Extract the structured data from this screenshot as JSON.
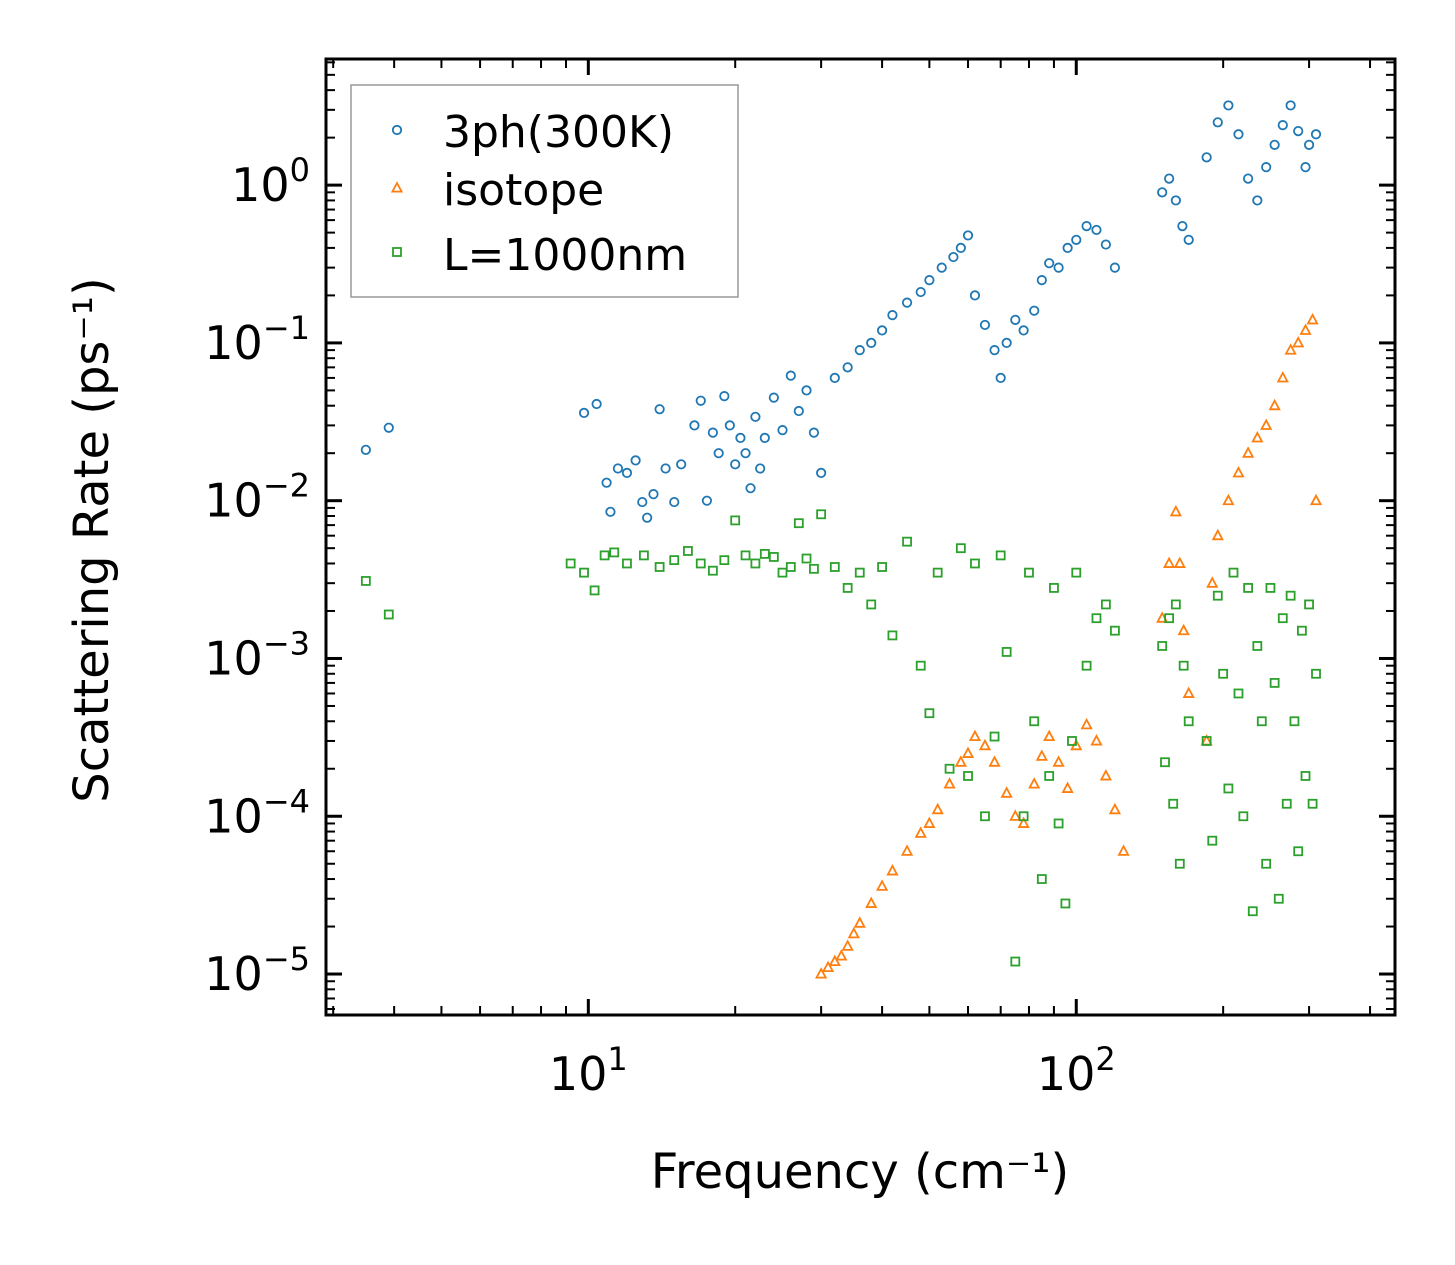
{
  "chart_data": {
    "type": "scatter",
    "xscale": "log",
    "yscale": "log",
    "xlim": [
      2.9,
      450
    ],
    "ylim": [
      5.5e-06,
      6.3
    ],
    "xlabel": "Frequency (cm⁻¹)",
    "ylabel": "Scattering Rate (ps⁻¹)",
    "x_ticks": [
      {
        "value": 10,
        "base": "10",
        "exp": "1"
      },
      {
        "value": 100,
        "base": "10",
        "exp": "2"
      }
    ],
    "y_ticks": [
      {
        "value": 1,
        "base": "10",
        "exp": "0"
      },
      {
        "value": 0.1,
        "base": "10",
        "exp": "−1"
      },
      {
        "value": 0.01,
        "base": "10",
        "exp": "−2"
      },
      {
        "value": 0.001,
        "base": "10",
        "exp": "−3"
      },
      {
        "value": 0.0001,
        "base": "10",
        "exp": "−4"
      },
      {
        "value": 1e-05,
        "base": "10",
        "exp": "−5"
      }
    ],
    "legend_position": "upper-left",
    "series": [
      {
        "name": "3ph(300K)",
        "marker": "circle",
        "color": "#1f77b4",
        "points": [
          [
            3.5,
            0.021
          ],
          [
            3.9,
            0.029
          ],
          [
            9.8,
            0.036
          ],
          [
            10.4,
            0.041
          ],
          [
            10.9,
            0.013
          ],
          [
            11.1,
            0.0085
          ],
          [
            11.5,
            0.016
          ],
          [
            12,
            0.015
          ],
          [
            12.5,
            0.018
          ],
          [
            12.9,
            0.0098
          ],
          [
            13.2,
            0.0078
          ],
          [
            13.6,
            0.011
          ],
          [
            14,
            0.038
          ],
          [
            14.4,
            0.016
          ],
          [
            15,
            0.0098
          ],
          [
            15.5,
            0.017
          ],
          [
            16.5,
            0.03
          ],
          [
            17,
            0.043
          ],
          [
            17.5,
            0.01
          ],
          [
            18,
            0.027
          ],
          [
            18.5,
            0.02
          ],
          [
            19,
            0.046
          ],
          [
            19.5,
            0.03
          ],
          [
            20,
            0.017
          ],
          [
            20.5,
            0.025
          ],
          [
            21,
            0.02
          ],
          [
            21.5,
            0.012
          ],
          [
            22,
            0.034
          ],
          [
            22.5,
            0.016
          ],
          [
            23,
            0.025
          ],
          [
            24,
            0.045
          ],
          [
            25,
            0.028
          ],
          [
            26,
            0.062
          ],
          [
            27,
            0.037
          ],
          [
            28,
            0.05
          ],
          [
            29,
            0.027
          ],
          [
            30,
            0.015
          ],
          [
            32,
            0.06
          ],
          [
            34,
            0.07
          ],
          [
            36,
            0.09
          ],
          [
            38,
            0.1
          ],
          [
            40,
            0.12
          ],
          [
            42,
            0.15
          ],
          [
            45,
            0.18
          ],
          [
            48,
            0.21
          ],
          [
            50,
            0.25
          ],
          [
            53,
            0.3
          ],
          [
            56,
            0.35
          ],
          [
            58,
            0.4
          ],
          [
            60,
            0.48
          ],
          [
            62,
            0.2
          ],
          [
            65,
            0.13
          ],
          [
            68,
            0.09
          ],
          [
            70,
            0.06
          ],
          [
            72,
            0.1
          ],
          [
            75,
            0.14
          ],
          [
            78,
            0.12
          ],
          [
            82,
            0.16
          ],
          [
            85,
            0.25
          ],
          [
            88,
            0.32
          ],
          [
            92,
            0.3
          ],
          [
            96,
            0.4
          ],
          [
            100,
            0.45
          ],
          [
            105,
            0.55
          ],
          [
            110,
            0.52
          ],
          [
            115,
            0.42
          ],
          [
            120,
            0.3
          ],
          [
            150,
            0.9
          ],
          [
            155,
            1.1
          ],
          [
            160,
            0.8
          ],
          [
            165,
            0.55
          ],
          [
            170,
            0.45
          ],
          [
            185,
            1.5
          ],
          [
            195,
            2.5
          ],
          [
            205,
            3.2
          ],
          [
            215,
            2.1
          ],
          [
            225,
            1.1
          ],
          [
            235,
            0.8
          ],
          [
            245,
            1.3
          ],
          [
            255,
            1.8
          ],
          [
            265,
            2.4
          ],
          [
            275,
            3.2
          ],
          [
            285,
            2.2
          ],
          [
            295,
            1.3
          ],
          [
            300,
            1.8
          ],
          [
            310,
            2.1
          ]
        ]
      },
      {
        "name": "isotope",
        "marker": "triangle",
        "color": "#ff7f0e",
        "points": [
          [
            30,
            1e-05
          ],
          [
            31,
            1.1e-05
          ],
          [
            32,
            1.2e-05
          ],
          [
            33,
            1.3e-05
          ],
          [
            34,
            1.5e-05
          ],
          [
            35,
            1.8e-05
          ],
          [
            36,
            2.1e-05
          ],
          [
            38,
            2.8e-05
          ],
          [
            40,
            3.6e-05
          ],
          [
            42,
            4.5e-05
          ],
          [
            45,
            6e-05
          ],
          [
            48,
            7.8e-05
          ],
          [
            50,
            9e-05
          ],
          [
            52,
            0.00011
          ],
          [
            55,
            0.00016
          ],
          [
            58,
            0.00022
          ],
          [
            60,
            0.00025
          ],
          [
            62,
            0.00032
          ],
          [
            65,
            0.00028
          ],
          [
            68,
            0.00022
          ],
          [
            72,
            0.00014
          ],
          [
            75,
            0.0001
          ],
          [
            78,
            9e-05
          ],
          [
            82,
            0.00016
          ],
          [
            85,
            0.00024
          ],
          [
            88,
            0.00032
          ],
          [
            92,
            0.00022
          ],
          [
            96,
            0.00015
          ],
          [
            100,
            0.00028
          ],
          [
            105,
            0.00038
          ],
          [
            110,
            0.0003
          ],
          [
            115,
            0.00018
          ],
          [
            120,
            0.00011
          ],
          [
            125,
            6e-05
          ],
          [
            150,
            0.0018
          ],
          [
            155,
            0.004
          ],
          [
            160,
            0.0085
          ],
          [
            163,
            0.004
          ],
          [
            166,
            0.0015
          ],
          [
            170,
            0.0006
          ],
          [
            185,
            0.0003
          ],
          [
            190,
            0.003
          ],
          [
            195,
            0.006
          ],
          [
            205,
            0.01
          ],
          [
            215,
            0.015
          ],
          [
            225,
            0.02
          ],
          [
            235,
            0.025
          ],
          [
            245,
            0.03
          ],
          [
            255,
            0.04
          ],
          [
            265,
            0.06
          ],
          [
            275,
            0.09
          ],
          [
            285,
            0.1
          ],
          [
            295,
            0.12
          ],
          [
            305,
            0.14
          ],
          [
            310,
            0.01
          ]
        ]
      },
      {
        "name": "L=1000nm",
        "marker": "square",
        "color": "#2ca02c",
        "points": [
          [
            3.5,
            0.0031
          ],
          [
            3.9,
            0.0019
          ],
          [
            9.2,
            0.004
          ],
          [
            9.8,
            0.0035
          ],
          [
            10.3,
            0.0027
          ],
          [
            10.8,
            0.0045
          ],
          [
            11.3,
            0.0047
          ],
          [
            12,
            0.004
          ],
          [
            13,
            0.0045
          ],
          [
            14,
            0.0038
          ],
          [
            15,
            0.0042
          ],
          [
            16,
            0.0048
          ],
          [
            17,
            0.004
          ],
          [
            18,
            0.0036
          ],
          [
            19,
            0.0042
          ],
          [
            20,
            0.0075
          ],
          [
            21,
            0.0045
          ],
          [
            22,
            0.004
          ],
          [
            23,
            0.0046
          ],
          [
            24,
            0.0044
          ],
          [
            25,
            0.0035
          ],
          [
            26,
            0.0038
          ],
          [
            27,
            0.0072
          ],
          [
            28,
            0.0043
          ],
          [
            29,
            0.0037
          ],
          [
            30,
            0.0082
          ],
          [
            32,
            0.0038
          ],
          [
            34,
            0.0028
          ],
          [
            36,
            0.0035
          ],
          [
            38,
            0.0022
          ],
          [
            40,
            0.0038
          ],
          [
            42,
            0.0014
          ],
          [
            45,
            0.0055
          ],
          [
            48,
            0.0009
          ],
          [
            50,
            0.00045
          ],
          [
            52,
            0.0035
          ],
          [
            55,
            0.0002
          ],
          [
            58,
            0.005
          ],
          [
            60,
            0.00018
          ],
          [
            62,
            0.004
          ],
          [
            65,
            0.0001
          ],
          [
            68,
            0.00032
          ],
          [
            70,
            0.0045
          ],
          [
            72,
            0.0011
          ],
          [
            75,
            1.2e-05
          ],
          [
            78,
            0.0001
          ],
          [
            80,
            0.0035
          ],
          [
            82,
            0.0004
          ],
          [
            85,
            4e-05
          ],
          [
            88,
            0.00018
          ],
          [
            90,
            0.0028
          ],
          [
            92,
            9e-05
          ],
          [
            95,
            2.8e-05
          ],
          [
            98,
            0.0003
          ],
          [
            100,
            0.0035
          ],
          [
            105,
            0.0009
          ],
          [
            110,
            0.0018
          ],
          [
            115,
            0.0022
          ],
          [
            120,
            0.0015
          ],
          [
            150,
            0.0012
          ],
          [
            152,
            0.00022
          ],
          [
            155,
            0.0018
          ],
          [
            158,
            0.00012
          ],
          [
            160,
            0.0022
          ],
          [
            163,
            5e-05
          ],
          [
            166,
            0.0009
          ],
          [
            170,
            0.0004
          ],
          [
            185,
            0.0003
          ],
          [
            190,
            7e-05
          ],
          [
            195,
            0.0025
          ],
          [
            200,
            0.0008
          ],
          [
            205,
            0.00015
          ],
          [
            210,
            0.0035
          ],
          [
            215,
            0.0006
          ],
          [
            220,
            0.0001
          ],
          [
            225,
            0.0028
          ],
          [
            230,
            2.5e-05
          ],
          [
            235,
            0.0012
          ],
          [
            240,
            0.0004
          ],
          [
            245,
            5e-05
          ],
          [
            250,
            0.0028
          ],
          [
            255,
            0.0007
          ],
          [
            260,
            3e-05
          ],
          [
            265,
            0.0018
          ],
          [
            270,
            0.00012
          ],
          [
            275,
            0.0025
          ],
          [
            280,
            0.0004
          ],
          [
            285,
            6e-05
          ],
          [
            290,
            0.0015
          ],
          [
            295,
            0.00018
          ],
          [
            300,
            0.0022
          ],
          [
            305,
            0.00012
          ],
          [
            310,
            0.0008
          ]
        ]
      }
    ]
  }
}
